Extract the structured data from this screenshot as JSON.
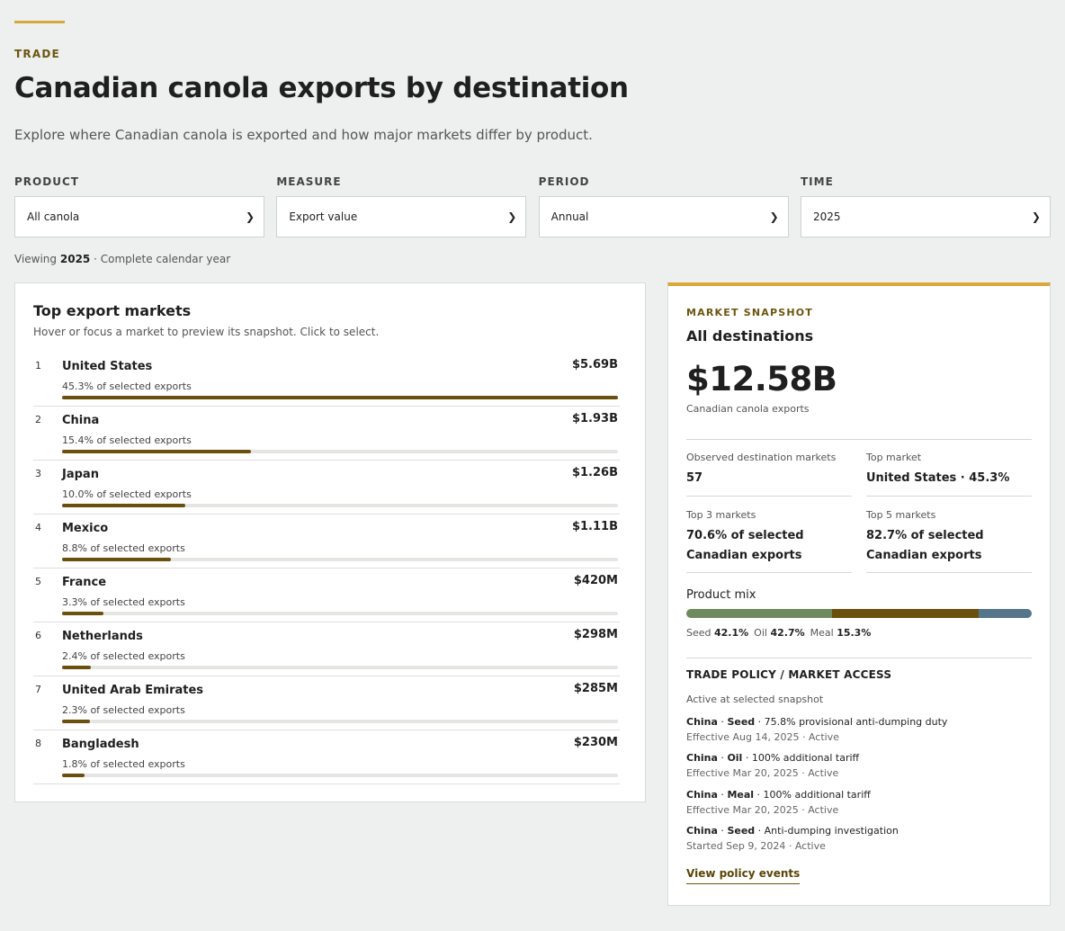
{
  "header": {
    "eyebrow": "TRADE",
    "title": "Canadian canola exports by destination",
    "subtitle": "Explore where Canadian canola is exported and how major markets differ by product."
  },
  "filters": [
    {
      "label": "PRODUCT",
      "value": "All canola"
    },
    {
      "label": "MEASURE",
      "value": "Export value"
    },
    {
      "label": "PERIOD",
      "value": "Annual"
    },
    {
      "label": "TIME",
      "value": "2025"
    }
  ],
  "viewing": {
    "prefix": "Viewing",
    "year": "2025",
    "suffix": "· Complete calendar year"
  },
  "markets": {
    "title": "Top export markets",
    "hint": "Hover or focus a market to preview its snapshot. Click to select.",
    "items": [
      {
        "rank": "1",
        "name": "United States",
        "value": "$5.69B",
        "share": "45.3% of selected exports",
        "fill": 1.0
      },
      {
        "rank": "2",
        "name": "China",
        "value": "$1.93B",
        "share": "15.4% of selected exports",
        "fill": 0.34
      },
      {
        "rank": "3",
        "name": "Japan",
        "value": "$1.26B",
        "share": "10.0% of selected exports",
        "fill": 0.222
      },
      {
        "rank": "4",
        "name": "Mexico",
        "value": "$1.11B",
        "share": "8.8% of selected exports",
        "fill": 0.195
      },
      {
        "rank": "5",
        "name": "France",
        "value": "$420M",
        "share": "3.3% of selected exports",
        "fill": 0.074
      },
      {
        "rank": "6",
        "name": "Netherlands",
        "value": "$298M",
        "share": "2.4% of selected exports",
        "fill": 0.052
      },
      {
        "rank": "7",
        "name": "United Arab Emirates",
        "value": "$285M",
        "share": "2.3% of selected exports",
        "fill": 0.05
      },
      {
        "rank": "8",
        "name": "Bangladesh",
        "value": "$230M",
        "share": "1.8% of selected exports",
        "fill": 0.04
      }
    ]
  },
  "snapshot": {
    "eyebrow": "MARKET SNAPSHOT",
    "title": "All destinations",
    "total": "$12.58B",
    "total_label": "Canadian canola exports",
    "stats": [
      {
        "label": "Observed destination markets",
        "value": "57"
      },
      {
        "label": "Top market",
        "value": "United States · 45.3%"
      },
      {
        "label": "Top 3 markets",
        "value": "70.6% of selected Canadian exports"
      },
      {
        "label": "Top 5 markets",
        "value": "82.7% of selected Canadian exports"
      }
    ],
    "mix": {
      "title": "Product mix",
      "segments": [
        {
          "label": "Seed",
          "value": "42.1%",
          "pct": 42.1,
          "color": "#6f8a5c"
        },
        {
          "label": "Oil",
          "value": "42.7%",
          "pct": 42.7,
          "color": "#6b4f0e"
        },
        {
          "label": "Meal",
          "value": "15.3%",
          "pct": 15.3,
          "color": "#55758a"
        }
      ]
    },
    "policy": {
      "title": "TRADE POLICY / MARKET ACCESS",
      "subtitle": "Active at selected snapshot",
      "items": [
        {
          "country": "China",
          "product": "Seed",
          "measure": "75.8% provisional anti-dumping duty",
          "date": "Effective Aug 14, 2025 · Active"
        },
        {
          "country": "China",
          "product": "Oil",
          "measure": "100% additional tariff",
          "date": "Effective Mar 20, 2025 · Active"
        },
        {
          "country": "China",
          "product": "Meal",
          "measure": "100% additional tariff",
          "date": "Effective Mar 20, 2025 · Active"
        },
        {
          "country": "China",
          "product": "Seed",
          "measure": "Anti-dumping investigation",
          "date": "Started Sep 9, 2024 · Active"
        }
      ],
      "link": "View policy events"
    }
  },
  "colors": {
    "accent": "#d6a93a",
    "bar": "#6b4f0e"
  }
}
